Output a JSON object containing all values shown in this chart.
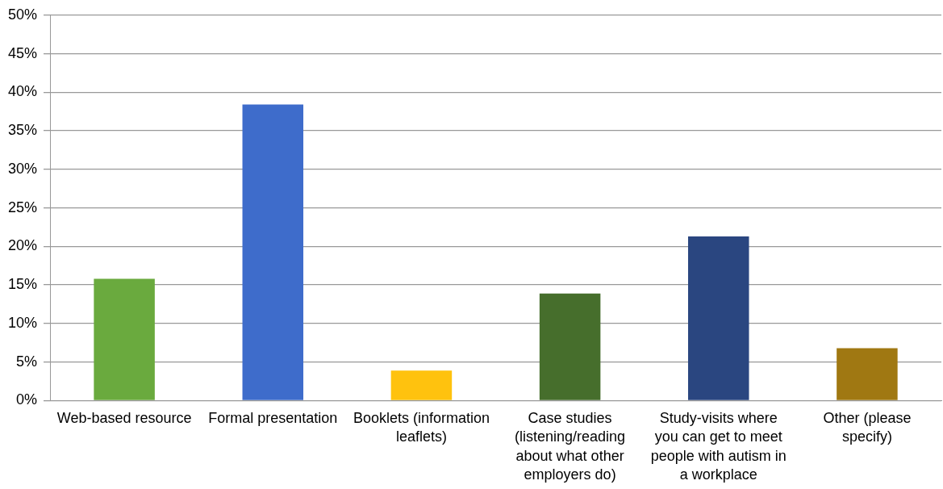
{
  "chart_data": {
    "type": "bar",
    "categories": [
      "Web-based resource",
      "Formal presentation",
      "Booklets (information leaflets)",
      "Case studies (listening/reading about what other employers do)",
      "Study-visits where you can get to meet people with autism in a workplace",
      "Other (please specify)"
    ],
    "values": [
      15.8,
      38.4,
      3.9,
      13.9,
      21.3,
      6.8
    ],
    "colors": [
      "#6aaa3e",
      "#3e6ccb",
      "#ffc20e",
      "#466e2c",
      "#2a4680",
      "#a07812"
    ],
    "ylim": [
      0,
      50
    ],
    "yticks": [
      {
        "value": 0,
        "label": "0%"
      },
      {
        "value": 5,
        "label": "5%"
      },
      {
        "value": 10,
        "label": "10%"
      },
      {
        "value": 15,
        "label": "15%"
      },
      {
        "value": 20,
        "label": "20%"
      },
      {
        "value": 25,
        "label": "25%"
      },
      {
        "value": 30,
        "label": "30%"
      },
      {
        "value": 35,
        "label": "35%"
      },
      {
        "value": 40,
        "label": "40%"
      },
      {
        "value": 45,
        "label": "45%"
      },
      {
        "value": 50,
        "label": "50%"
      }
    ],
    "grid": "y"
  }
}
